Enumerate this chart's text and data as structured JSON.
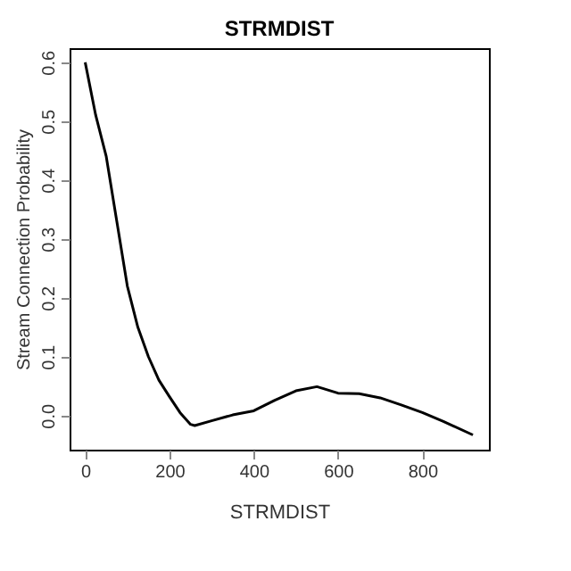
{
  "chart_data": {
    "type": "line",
    "title": "STRMDIST",
    "xlabel": "STRMDIST",
    "ylabel": "Stream Connection Probability",
    "series": [
      {
        "color": "#000000",
        "x": [
          0,
          25,
          50,
          75,
          100,
          125,
          150,
          175,
          200,
          225,
          250,
          260,
          300,
          350,
          400,
          450,
          500,
          550,
          600,
          650,
          700,
          750,
          800,
          850,
          920
        ],
        "values": [
          0.6,
          0.51,
          0.44,
          0.33,
          0.22,
          0.15,
          0.1,
          0.06,
          0.032,
          0.005,
          -0.015,
          -0.017,
          -0.009,
          0.001,
          0.008,
          0.026,
          0.042,
          0.049,
          0.038,
          0.037,
          0.03,
          0.018,
          0.005,
          -0.01,
          -0.033
        ]
      }
    ],
    "xlim": [
      -37,
      958
    ],
    "ylim": [
      -0.058,
      0.624
    ],
    "xticks": [
      0,
      200,
      400,
      600,
      800
    ],
    "yticks": [
      {
        "value": 0,
        "label": "0.0"
      },
      0.1,
      0.2,
      0.3,
      0.4,
      0.5,
      0.6
    ],
    "grid": false,
    "line_style": "solid",
    "marker": "none"
  }
}
